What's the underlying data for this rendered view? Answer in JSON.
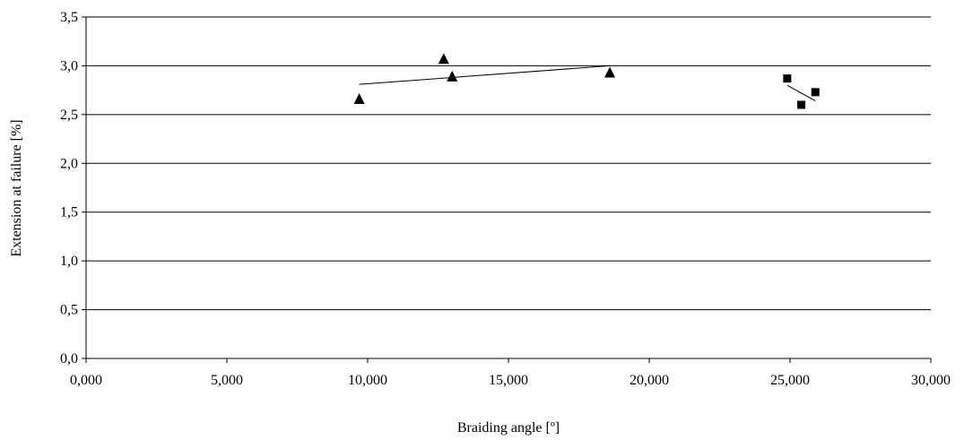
{
  "chart_data": {
    "type": "scatter",
    "xlabel": "Braiding angle [º]",
    "ylabel": "Extension at failure [%]",
    "xlim": [
      0,
      30
    ],
    "ylim": [
      0,
      3.5
    ],
    "x_ticks": [
      0,
      5,
      10,
      15,
      20,
      25,
      30
    ],
    "x_tick_labels": [
      "0,000",
      "5,000",
      "10,000",
      "15,000",
      "20,000",
      "25,000",
      "30,000"
    ],
    "y_ticks": [
      0,
      0.5,
      1,
      1.5,
      2,
      2.5,
      3,
      3.5
    ],
    "y_tick_labels": [
      "0,0",
      "0,5",
      "1,0",
      "1,5",
      "2,0",
      "2,5",
      "3,0",
      "3,5"
    ],
    "grid": "horizontal",
    "legend": "none",
    "series": [
      {
        "marker": "triangle",
        "color": "#000000",
        "points": [
          {
            "x": 9.7,
            "y": 2.66
          },
          {
            "x": 12.7,
            "y": 3.07
          },
          {
            "x": 13.0,
            "y": 2.89
          },
          {
            "x": 18.6,
            "y": 2.93
          }
        ],
        "trendline": {
          "x": [
            9.7,
            18.6
          ],
          "y": [
            2.81,
            3.0
          ]
        }
      },
      {
        "marker": "square",
        "color": "#000000",
        "points": [
          {
            "x": 24.9,
            "y": 2.87
          },
          {
            "x": 25.4,
            "y": 2.6
          },
          {
            "x": 25.9,
            "y": 2.73
          }
        ],
        "trendline": {
          "x": [
            24.9,
            25.9
          ],
          "y": [
            2.8,
            2.64
          ]
        }
      }
    ]
  }
}
